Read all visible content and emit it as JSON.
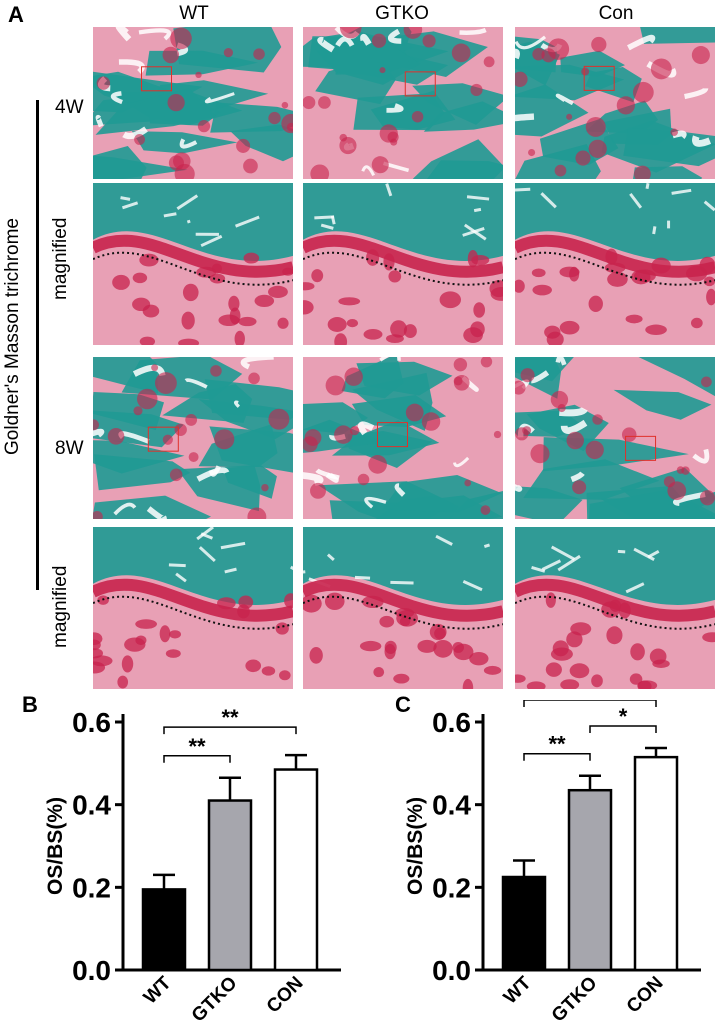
{
  "figure": {
    "panel_labels": [
      "A",
      "B",
      "C"
    ],
    "columns": [
      "WT",
      "GTKO",
      "Con"
    ],
    "side_label": "Goldner's Masson trichrome",
    "rows": [
      {
        "label": "4W",
        "magnified": false
      },
      {
        "label": "magnified",
        "magnified": true
      },
      {
        "label": "8W",
        "magnified": false
      },
      {
        "label": "magnified",
        "magnified": true
      }
    ],
    "colors": {
      "collagen": "#1f9a94",
      "osteoid": "#c8234d",
      "marrow": "#e8a0b5",
      "background": "#f3e6ea"
    }
  },
  "chart_data": [
    {
      "type": "bar",
      "panel": "B",
      "categories": [
        "WT",
        "GTKO",
        "CON"
      ],
      "values": [
        0.195,
        0.41,
        0.485
      ],
      "errors": [
        0.035,
        0.055,
        0.035
      ],
      "fills": [
        "#000000",
        "#a6a6ad",
        "#ffffff"
      ],
      "ylabel": "OS/BS(%)",
      "ylim": [
        0.0,
        0.6
      ],
      "yticks": [
        "0.0",
        "0.2",
        "0.4",
        "0.6"
      ],
      "significance": [
        {
          "from": 0,
          "to": 1,
          "label": "**"
        },
        {
          "from": 0,
          "to": 2,
          "label": "**"
        }
      ]
    },
    {
      "type": "bar",
      "panel": "C",
      "categories": [
        "WT",
        "GTKO",
        "CON"
      ],
      "values": [
        0.225,
        0.435,
        0.515
      ],
      "errors": [
        0.04,
        0.035,
        0.022
      ],
      "fills": [
        "#000000",
        "#a6a6ad",
        "#ffffff"
      ],
      "ylabel": "OS/BS(%)",
      "ylim": [
        0.0,
        0.6
      ],
      "yticks": [
        "0.0",
        "0.2",
        "0.4",
        "0.6"
      ],
      "significance": [
        {
          "from": 0,
          "to": 1,
          "label": "**"
        },
        {
          "from": 1,
          "to": 2,
          "label": "*"
        },
        {
          "from": 0,
          "to": 2,
          "label": "**"
        }
      ]
    }
  ]
}
